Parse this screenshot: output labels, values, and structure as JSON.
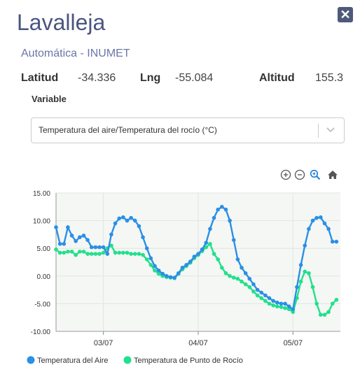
{
  "header": {
    "title": "Lavalleja",
    "subtitle": "Automática - INUMET"
  },
  "location": {
    "lat_label": "Latitud",
    "lat_value": "-34.336",
    "lng_label": "Lng",
    "lng_value": "-55.084",
    "alt_label": "Altitud",
    "alt_value": "155.3"
  },
  "variable": {
    "label": "Variable",
    "selected": "Temperatura del aire/Temperatura del rocío (°C)"
  },
  "toolbar": {
    "icons": [
      "zoom-in-icon",
      "zoom-out-icon",
      "zoom-select-icon",
      "home-icon"
    ]
  },
  "colors": {
    "air": "#2b8fe6",
    "dew": "#22e08c",
    "title": "#4a5580",
    "accent": "#6a76a8"
  },
  "chart_data": {
    "type": "line",
    "x_tick_labels": [
      "03/07",
      "04/07",
      "05/07"
    ],
    "x_ticks": [
      12,
      36,
      60
    ],
    "xlim": [
      0,
      72
    ],
    "ylim": [
      -10,
      15
    ],
    "y_ticks": [
      15,
      10,
      5,
      0,
      -5,
      -10
    ],
    "y_tick_labels": [
      "15.00",
      "10.00",
      "5.00",
      "0.00",
      "-5.00",
      "-10.00"
    ],
    "grid": true,
    "legend": "bottom-left",
    "series": [
      {
        "name": "Temperatura del Aire",
        "color": "#2b8fe6",
        "x": [
          0,
          1,
          2,
          3,
          4,
          5,
          6,
          7,
          8,
          9,
          10,
          11,
          12,
          13,
          14,
          15,
          16,
          17,
          18,
          19,
          20,
          21,
          22,
          23,
          24,
          25,
          26,
          27,
          28,
          29,
          30,
          31,
          32,
          33,
          34,
          35,
          36,
          37,
          38,
          39,
          40,
          41,
          42,
          43,
          44,
          45,
          46,
          47,
          48,
          49,
          50,
          51,
          52,
          53,
          54,
          55,
          56,
          57,
          58,
          59,
          60,
          61,
          62,
          63,
          64,
          65,
          66,
          67,
          68,
          69,
          70,
          71
        ],
        "y": [
          8.8,
          5.8,
          5.8,
          8.8,
          7.3,
          6.3,
          7.0,
          7.3,
          6.5,
          5.2,
          5.2,
          5.2,
          5.2,
          4.0,
          7.5,
          9.5,
          10.4,
          10.6,
          10.0,
          10.5,
          10.0,
          9.0,
          7.0,
          5.0,
          3.2,
          1.8,
          1.0,
          0.4,
          0.0,
          -0.2,
          -0.3,
          0.5,
          1.5,
          2.0,
          2.6,
          3.5,
          4.0,
          4.8,
          6.0,
          8.5,
          10.5,
          12.0,
          12.5,
          12.0,
          10.0,
          6.5,
          3.0,
          1.5,
          0.5,
          -0.5,
          -1.5,
          -2.5,
          -3.0,
          -3.5,
          -4.0,
          -4.5,
          -4.8,
          -5.0,
          -5.0,
          -5.5,
          -6.0,
          -2.0,
          2.0,
          5.5,
          8.5,
          10.0,
          10.5,
          10.6,
          9.5,
          8.5,
          6.2,
          6.2
        ]
      },
      {
        "name": "Temperatura de Punto de Rocío",
        "color": "#22e08c",
        "x": [
          0,
          1,
          2,
          3,
          4,
          5,
          6,
          7,
          8,
          9,
          10,
          11,
          12,
          13,
          14,
          15,
          16,
          17,
          18,
          19,
          20,
          21,
          22,
          23,
          24,
          25,
          26,
          27,
          28,
          29,
          30,
          31,
          32,
          33,
          34,
          35,
          36,
          37,
          38,
          39,
          40,
          41,
          42,
          43,
          44,
          45,
          46,
          47,
          48,
          49,
          50,
          51,
          52,
          53,
          54,
          55,
          56,
          57,
          58,
          59,
          60,
          61,
          62,
          63,
          64,
          65,
          66,
          67,
          68,
          69,
          70,
          71
        ],
        "y": [
          4.8,
          4.2,
          4.2,
          4.4,
          4.4,
          3.8,
          4.4,
          4.4,
          4.0,
          4.0,
          4.0,
          4.0,
          4.2,
          5.0,
          5.5,
          4.2,
          4.2,
          4.2,
          4.2,
          4.0,
          4.0,
          4.0,
          3.8,
          3.0,
          2.0,
          1.0,
          0.4,
          0.0,
          -0.2,
          -0.3,
          -0.4,
          0.4,
          1.2,
          1.8,
          2.4,
          3.2,
          3.8,
          4.5,
          5.2,
          5.8,
          4.0,
          3.0,
          1.5,
          0.5,
          0.0,
          -0.3,
          -0.5,
          -1.0,
          -1.5,
          -2.0,
          -2.8,
          -3.5,
          -4.0,
          -4.5,
          -5.0,
          -5.3,
          -5.5,
          -5.6,
          -5.8,
          -6.0,
          -6.5,
          -4.0,
          -1.0,
          0.8,
          0.5,
          -2.0,
          -5.0,
          -7.0,
          -7.0,
          -6.5,
          -5.0,
          -4.3
        ]
      }
    ]
  }
}
